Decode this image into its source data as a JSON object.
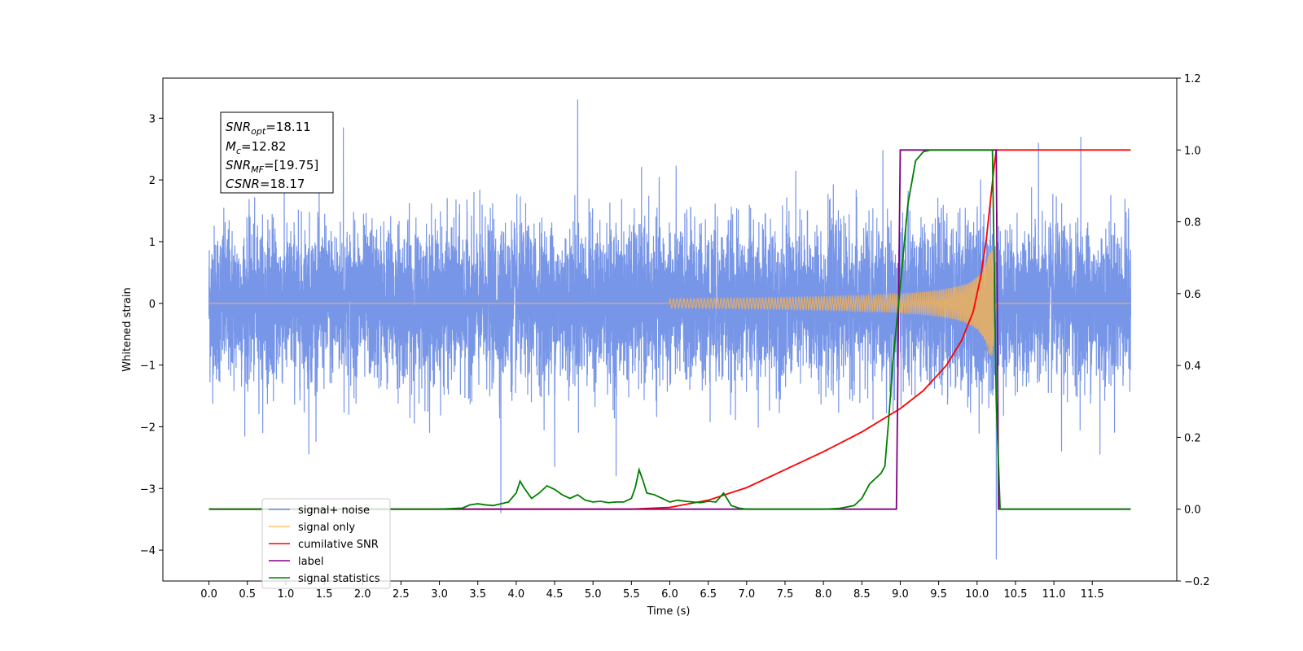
{
  "chart_data": {
    "type": "line",
    "xlabel": "Time (s)",
    "ylabel": "Whitened strain",
    "xlim": [
      -0.6,
      12.6
    ],
    "ylim": [
      -4.5,
      3.65
    ],
    "y2lim": [
      -0.2,
      1.2
    ],
    "x_ticks": [
      "0.0",
      "0.5",
      "1.0",
      "1.5",
      "2.0",
      "2.5",
      "3.0",
      "3.5",
      "4.0",
      "4.5",
      "5.0",
      "5.5",
      "6.0",
      "6.5",
      "7.0",
      "7.5",
      "8.0",
      "8.5",
      "9.0",
      "9.5",
      "10.0",
      "10.5",
      "11.0",
      "11.5"
    ],
    "y_ticks": [
      "3",
      "2",
      "1",
      "0",
      "−1",
      "−2",
      "−3",
      "−4"
    ],
    "y2_ticks": [
      "1.2",
      "1.0",
      "0.8",
      "0.6",
      "0.4",
      "0.2",
      "0.0",
      "−0.2"
    ],
    "annotation": {
      "snr_opt_label": "SNR",
      "snr_opt_sub": "opt",
      "snr_opt_value": "=18.11",
      "mc_label": "M",
      "mc_sub": "c",
      "mc_value": "=12.82",
      "snr_mf_label": "SNR",
      "snr_mf_sub": "MF",
      "snr_mf_value": "=[19.75]",
      "csnr_label": "CSNR",
      "csnr_value": "=18.17"
    },
    "legend": {
      "placement": "lower-left",
      "entries": [
        "signal+ noise",
        "signal only",
        "cumilative SNR",
        "label",
        "signal statistics"
      ]
    },
    "colors": {
      "noise": "#6d8de6",
      "signal": "#ffb347",
      "snr": "#ff0000",
      "label": "#800080",
      "stats": "#008000"
    },
    "series": [
      {
        "name": "signal+ noise",
        "axis": "left",
        "description_points": {
          "x_start": 0.0,
          "x_end": 12.0,
          "typical_envelope": [
            -1.5,
            1.6
          ]
        },
        "spikes": [
          {
            "x": 4.8,
            "y": 3.3
          },
          {
            "x": 1.75,
            "y": 2.85
          },
          {
            "x": 11.35,
            "y": 2.7
          },
          {
            "x": 3.8,
            "y": -3.4
          },
          {
            "x": 10.25,
            "y": -4.15
          },
          {
            "x": 1.3,
            "y": -2.45
          },
          {
            "x": 4.5,
            "y": -2.65
          },
          {
            "x": 5.3,
            "y": -2.8
          },
          {
            "x": 10.8,
            "y": 2.6
          },
          {
            "x": 11.6,
            "y": -2.45
          },
          {
            "x": 11.1,
            "y": -2.4
          }
        ]
      },
      {
        "name": "signal only",
        "axis": "left",
        "chirp": {
          "x_start": 6.0,
          "x_merge": 10.2,
          "peak_amplitude": 0.85
        }
      },
      {
        "name": "cumilative SNR",
        "axis": "right",
        "x": [
          0,
          5.5,
          6.0,
          6.5,
          7.0,
          7.5,
          8.0,
          8.5,
          9.0,
          9.3,
          9.6,
          9.8,
          9.95,
          10.05,
          10.12,
          10.18,
          10.22,
          10.25,
          12.0
        ],
        "y": [
          0,
          0,
          0.005,
          0.025,
          0.06,
          0.11,
          0.16,
          0.215,
          0.28,
          0.33,
          0.4,
          0.47,
          0.55,
          0.65,
          0.75,
          0.87,
          0.95,
          1.0,
          1.0
        ]
      },
      {
        "name": "label",
        "axis": "right",
        "x": [
          0,
          8.95,
          9.0,
          10.25,
          10.28,
          12.0
        ],
        "y": [
          0,
          0,
          1,
          1,
          0,
          0
        ]
      },
      {
        "name": "signal statistics",
        "axis": "right",
        "x": [
          0,
          3.0,
          3.3,
          3.4,
          3.5,
          3.6,
          3.7,
          3.8,
          3.9,
          4.0,
          4.05,
          4.1,
          4.2,
          4.3,
          4.4,
          4.5,
          4.6,
          4.7,
          4.8,
          4.9,
          5.0,
          5.1,
          5.2,
          5.3,
          5.4,
          5.5,
          5.55,
          5.6,
          5.65,
          5.7,
          5.8,
          5.9,
          6.0,
          6.1,
          6.2,
          6.3,
          6.4,
          6.5,
          6.6,
          6.7,
          6.8,
          6.9,
          7.0,
          7.5,
          8.0,
          8.2,
          8.4,
          8.5,
          8.6,
          8.7,
          8.75,
          8.8,
          8.85,
          8.9,
          9.0,
          9.1,
          9.2,
          9.3,
          9.4,
          9.5,
          10.2,
          10.25,
          10.3,
          12.0
        ],
        "y": [
          0,
          0.0,
          0.003,
          0.012,
          0.015,
          0.012,
          0.01,
          0.015,
          0.02,
          0.045,
          0.078,
          0.06,
          0.03,
          0.045,
          0.065,
          0.055,
          0.04,
          0.03,
          0.04,
          0.025,
          0.02,
          0.022,
          0.018,
          0.02,
          0.02,
          0.03,
          0.06,
          0.11,
          0.08,
          0.045,
          0.04,
          0.03,
          0.02,
          0.025,
          0.022,
          0.02,
          0.018,
          0.022,
          0.02,
          0.045,
          0.01,
          0.003,
          0.0,
          0.0,
          0.0,
          0.002,
          0.01,
          0.03,
          0.07,
          0.09,
          0.1,
          0.12,
          0.25,
          0.4,
          0.62,
          0.85,
          0.97,
          0.995,
          1.0,
          1.0,
          1.0,
          0.3,
          0.0,
          0.0
        ]
      }
    ]
  }
}
